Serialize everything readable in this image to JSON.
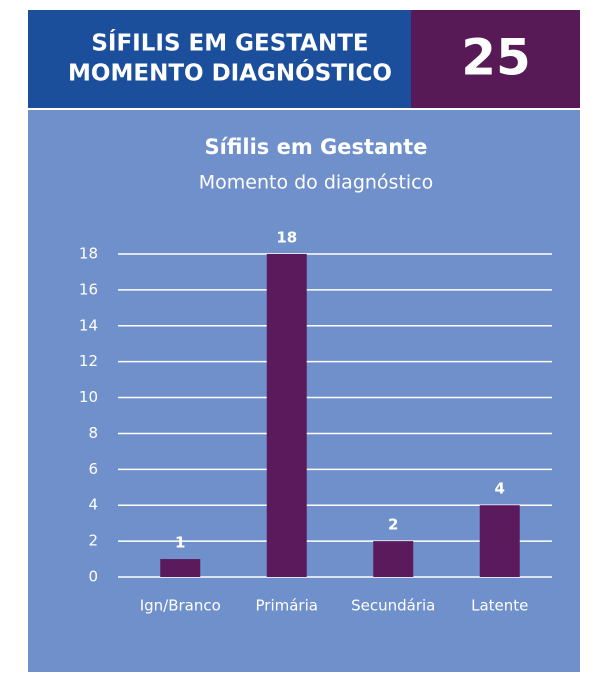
{
  "header": {
    "title_lines": [
      "SÍFILIS EM GESTANTE",
      "MOMENTO DIAGNÓSTICO"
    ],
    "number": 25
  },
  "chart_data": {
    "type": "bar",
    "title": "Sífilis em Gestante",
    "subtitle": "Momento do diagnóstico",
    "categories": [
      "Ign/Branco",
      "Primária",
      "Secundária",
      "Latente"
    ],
    "values": [
      1,
      18,
      2,
      4
    ],
    "color": "#5a1a5c",
    "ylim": [
      0,
      18
    ],
    "yticks": [
      0,
      2,
      4,
      6,
      8,
      10,
      12,
      14,
      16,
      18
    ],
    "grid": true
  }
}
